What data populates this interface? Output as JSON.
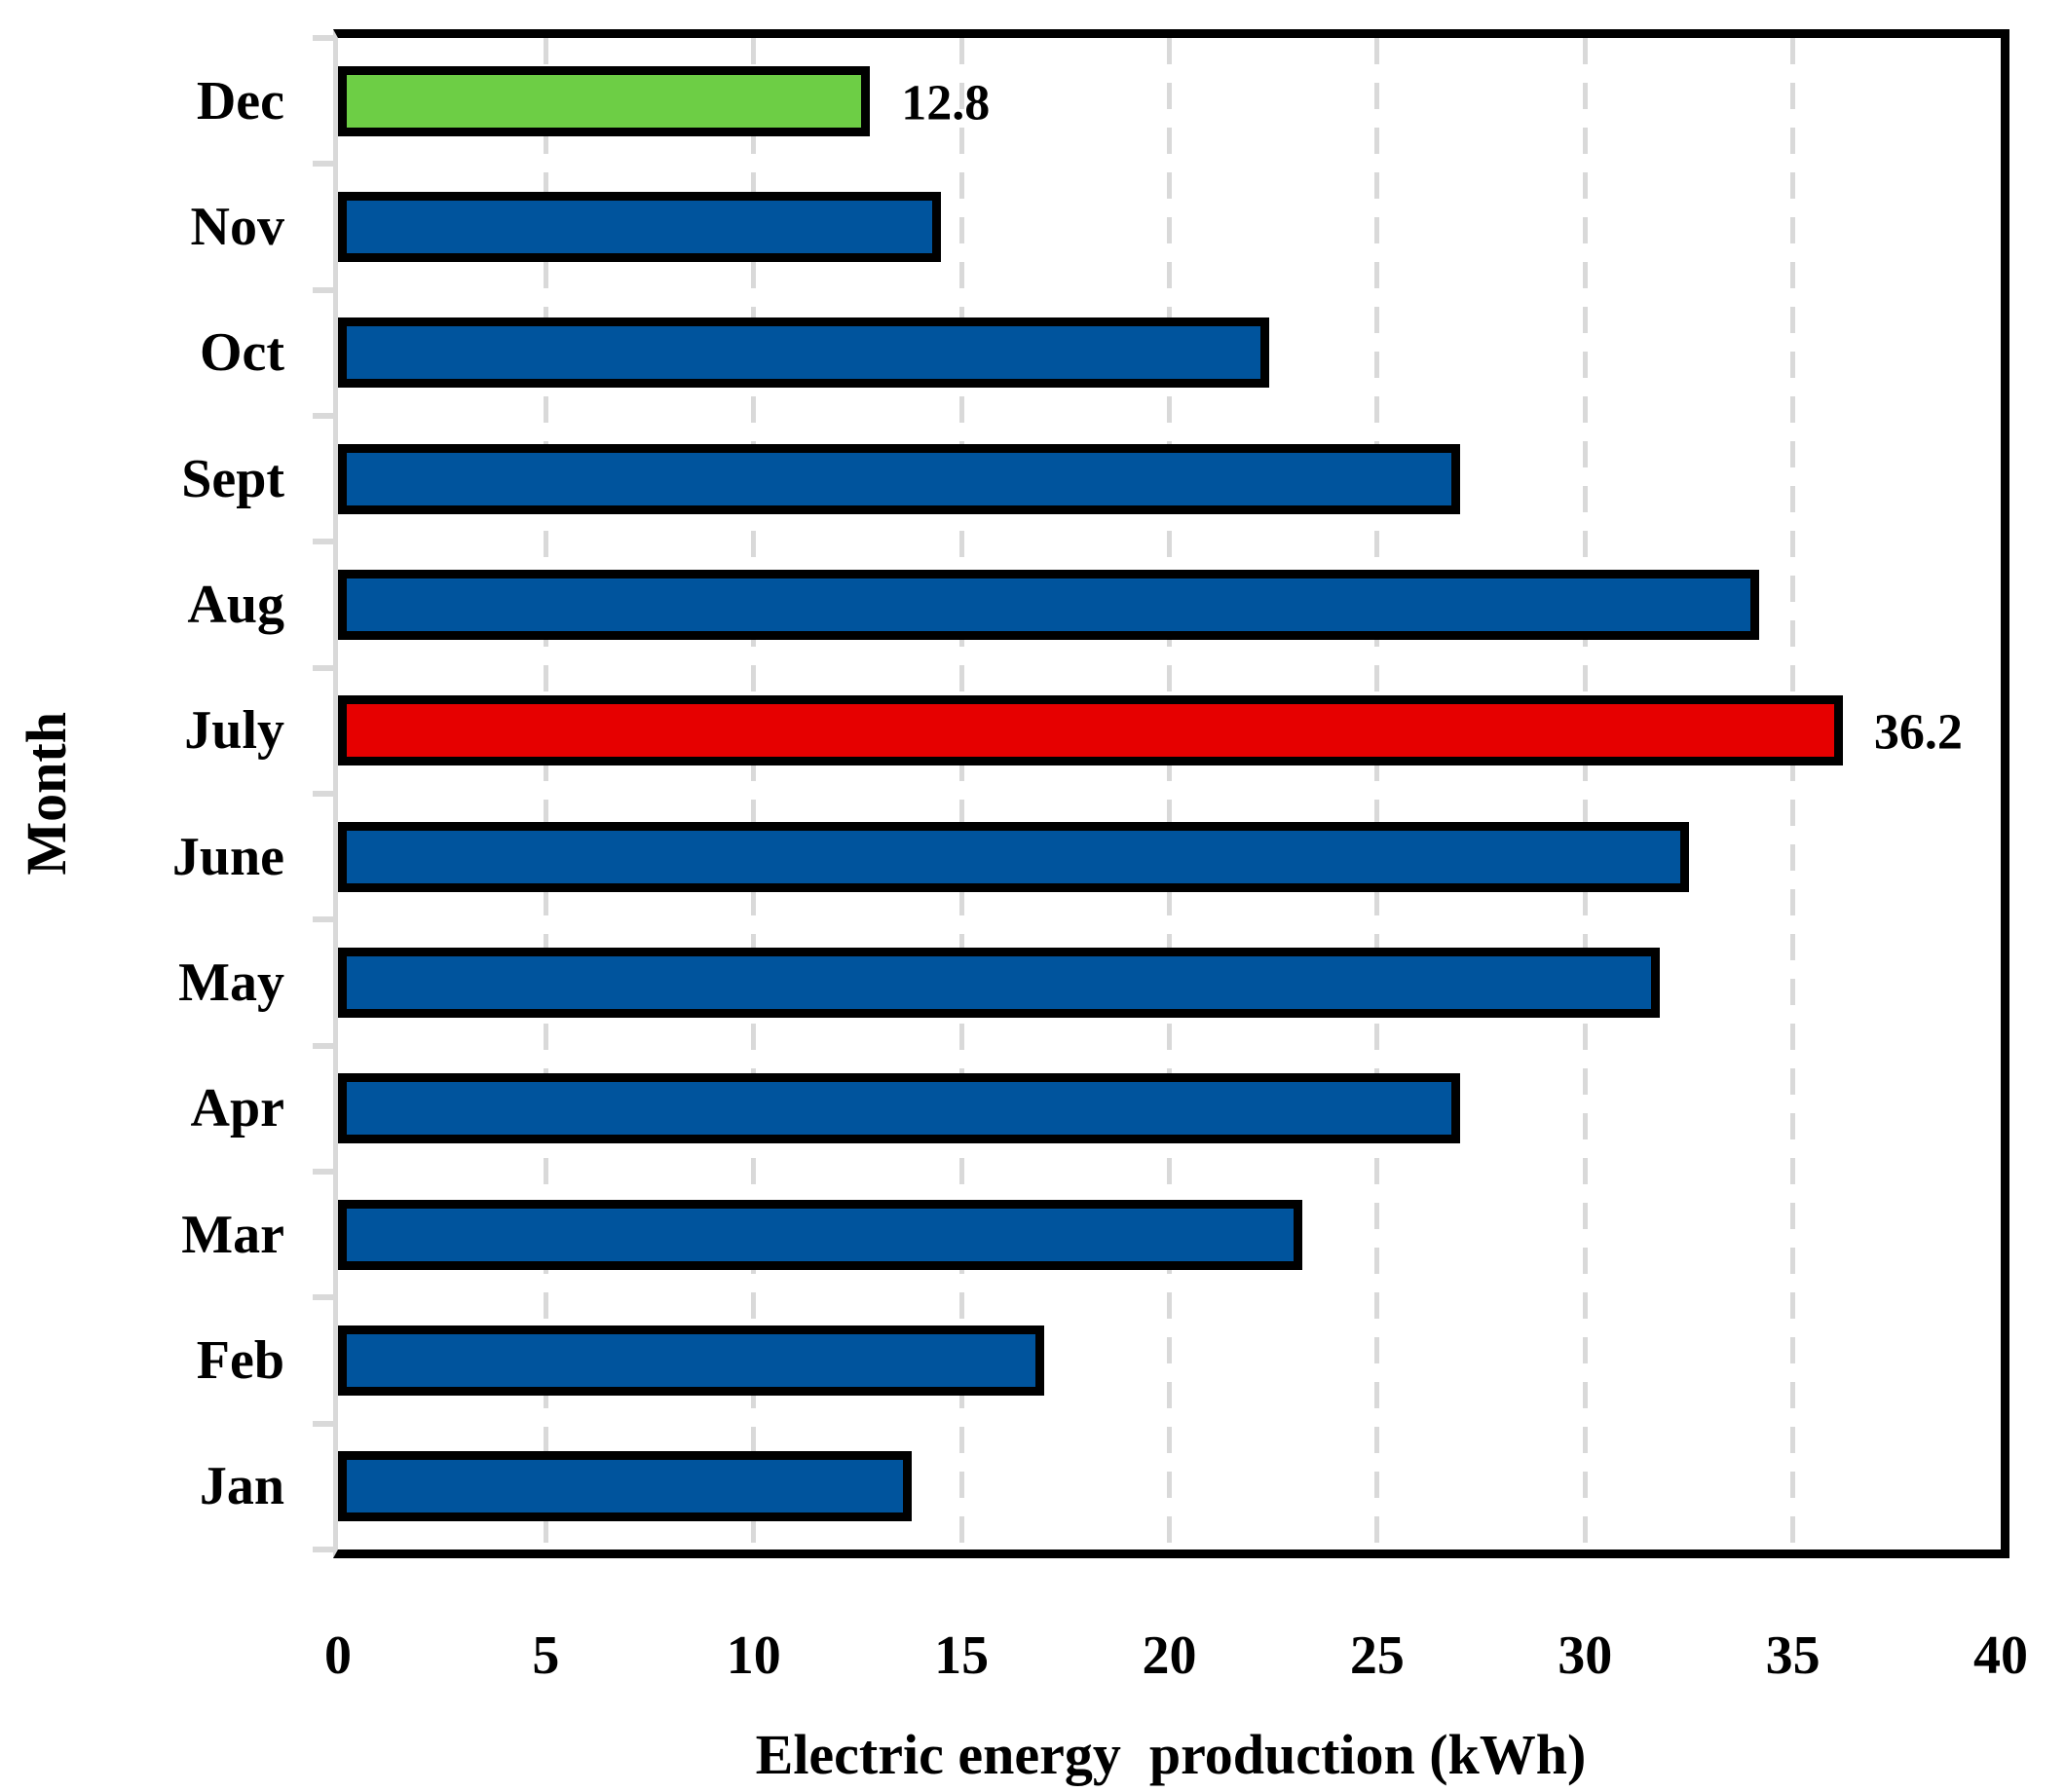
{
  "chart_data": {
    "type": "bar",
    "orientation": "horizontal",
    "title": "",
    "xlabel": "Electric energy  production (kWh)",
    "ylabel": "Month",
    "xlim": [
      0,
      40
    ],
    "xticks": [
      0,
      5,
      10,
      15,
      20,
      25,
      30,
      35,
      40
    ],
    "grid": "vertical dashed gridlines at every x tick",
    "legend": "none",
    "months_top_to_bottom": [
      {
        "label": "Dec",
        "value": 12.8,
        "color": "#6DCE45",
        "annotation": "12.8"
      },
      {
        "label": "Nov",
        "value": 14.5,
        "color": "#00549D",
        "annotation": null
      },
      {
        "label": "Oct",
        "value": 22.4,
        "color": "#00549D",
        "annotation": null
      },
      {
        "label": "Sept",
        "value": 27.0,
        "color": "#00549D",
        "annotation": null
      },
      {
        "label": "Aug",
        "value": 34.2,
        "color": "#00549D",
        "annotation": null
      },
      {
        "label": "July",
        "value": 36.2,
        "color": "#E60000",
        "annotation": "36.2"
      },
      {
        "label": "June",
        "value": 32.5,
        "color": "#00549D",
        "annotation": null
      },
      {
        "label": "May",
        "value": 31.8,
        "color": "#00549D",
        "annotation": null
      },
      {
        "label": "Apr",
        "value": 27.0,
        "color": "#00549D",
        "annotation": null
      },
      {
        "label": "Mar",
        "value": 23.2,
        "color": "#00549D",
        "annotation": null
      },
      {
        "label": "Feb",
        "value": 17.0,
        "color": "#00549D",
        "annotation": null
      },
      {
        "label": "Jan",
        "value": 13.8,
        "color": "#00549D",
        "annotation": null
      }
    ],
    "colors": {
      "bar_default": "#00549D",
      "bar_highlight_green": "#6DCE45",
      "bar_highlight_red": "#E60000",
      "bar_border": "#000000",
      "gridline": "#D9D9D9",
      "category_axis_line": "#D9D9D9",
      "plot_border": "#000000",
      "text": "#000000"
    }
  }
}
